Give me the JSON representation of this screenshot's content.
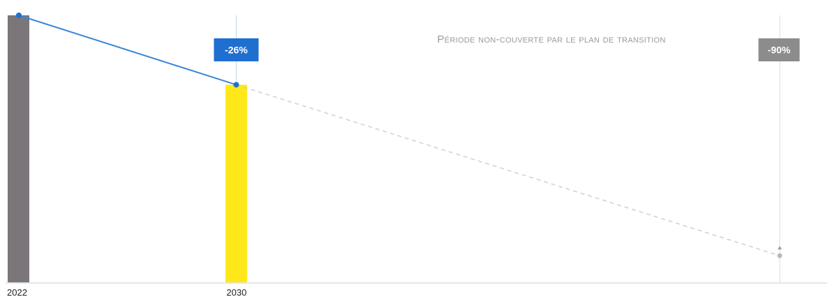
{
  "chart_data": {
    "type": "bar",
    "title": "",
    "xlabel": "",
    "ylabel": "",
    "x": [
      2022,
      2030,
      2050
    ],
    "xlim": [
      2022,
      2050
    ],
    "ylim": [
      0,
      100
    ],
    "x_tick_labels": [
      "2022",
      "2030"
    ],
    "bars": [
      {
        "x": 2022,
        "value": 100,
        "color": "#7b767a"
      },
      {
        "x": 2030,
        "value": 74,
        "color": "#ffe81a"
      }
    ],
    "trajectory": [
      {
        "x": 2022,
        "y": 100
      },
      {
        "x": 2030,
        "y": 74
      }
    ],
    "projection": [
      {
        "x": 2030,
        "y": 74
      },
      {
        "x": 2050,
        "y": 10
      }
    ],
    "markers": [
      {
        "x": 2030,
        "label": "-26%",
        "color": "#1f6fd0"
      },
      {
        "x": 2050,
        "label": "-90%",
        "color": "#8c8c8c"
      }
    ],
    "annotation": "Période non-couverte par le plan de transition",
    "colors": {
      "trajectory": "#3a86d8",
      "projection": "#d0d0d0",
      "guide_line": "#c9dcf2",
      "axis": "#e6e6e6"
    },
    "grid": false,
    "legend": "none"
  }
}
